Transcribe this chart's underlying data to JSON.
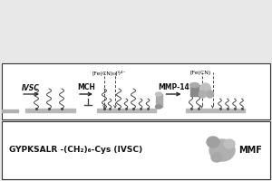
{
  "bg_color": "#e8e8e8",
  "top_panel_bg": "#f5f5f5",
  "bottom_panel_bg": "#f5f5f5",
  "text_color": "#111111",
  "arrow_color": "#222222",
  "electrode_color": "#c0c0c0",
  "peptide_color": "#444444",
  "dashed_color": "#444444",
  "protein_color": "#999999",
  "label_ivsc": "IVSC",
  "label_mch": "MCH",
  "label_mmp14": "MMP-14",
  "label_fecn1": "[Fe(CN)₆]³⁄⁴⁻",
  "label_fecn2": "[Fe(CN)",
  "label_bottom1": "GYPKSALR -(CH₂)₆-Cys (IVSC)",
  "label_bottom2": "MMF",
  "border_color": "#333333"
}
